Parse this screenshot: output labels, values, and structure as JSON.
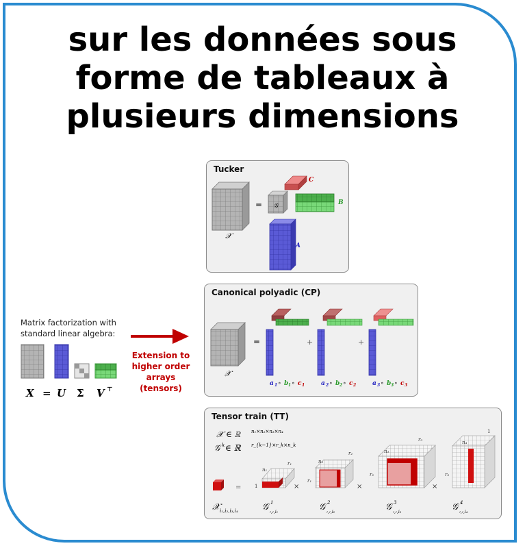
{
  "title": {
    "line1": "sur les données sous",
    "line2": "forme de tableaux à",
    "line3": "plusieurs dimensions"
  },
  "matrix_section": {
    "caption_line1": "Matrix factorization with",
    "caption_line2": "standard linear algebra:",
    "eq": {
      "x": "X",
      "eq": "=",
      "u": "U",
      "sigma": "Σ",
      "v": "V",
      "vt": "⊤"
    }
  },
  "arrow_label": {
    "line1": "Extension to",
    "line2": "higher order",
    "line3": "arrays",
    "line4": "(tensors)"
  },
  "tucker": {
    "title": "Tucker",
    "x_label": "𝒳",
    "eq": "=",
    "core_label": "𝒢",
    "a_label": "A",
    "b_label": "B",
    "c_label": "C"
  },
  "cp": {
    "title": "Canonical polyadic (CP)",
    "x_label": "𝒳",
    "eq": "=",
    "plus": "+",
    "terms": [
      {
        "a": "a",
        "ai": "1",
        "b": "b",
        "bi": "1",
        "c": "c",
        "ci": "1"
      },
      {
        "a": "a",
        "ai": "2",
        "b": "b",
        "bi": "2",
        "c": "c",
        "ci": "2"
      },
      {
        "a": "a",
        "ai": "3",
        "b": "b",
        "bi": "3",
        "c": "c",
        "ci": "3"
      }
    ],
    "circ": "∘"
  },
  "tt": {
    "title": "Tensor train (TT)",
    "def1": "𝒳 ∈ ℝ",
    "def1_sup": "n₁×n₂×n₃×n₄",
    "def2": "𝒢",
    "def2_sup": "k",
    "def2_rest": " ∈ ℝ",
    "def2_sup2": "r_{k−1}×r_k×n_k",
    "eq": "=",
    "times": "×",
    "x_elem": "𝒳",
    "x_elem_sub": "i₁,i₂,i₃,i₄",
    "cores": [
      {
        "g": "𝒢",
        "sup": "1",
        "sub": ":,:,i₁"
      },
      {
        "g": "𝒢",
        "sup": "2",
        "sub": ":,:,i₂"
      },
      {
        "g": "𝒢",
        "sup": "3",
        "sub": ":,:,i₃"
      },
      {
        "g": "𝒢",
        "sup": "4",
        "sub": ":,:,i₄"
      }
    ],
    "dims": {
      "one": "1",
      "n1": "n₁",
      "r1": "r₁",
      "n2": "n₂",
      "r2": "r₂",
      "n3": "n₃",
      "r3": "r₃",
      "n4": "n₄"
    }
  },
  "colors": {
    "frame": "#2a8bd0",
    "arrow": "#c00000",
    "blue": "#5858d8",
    "green": "#3d9a3d",
    "red": "#d04040"
  }
}
